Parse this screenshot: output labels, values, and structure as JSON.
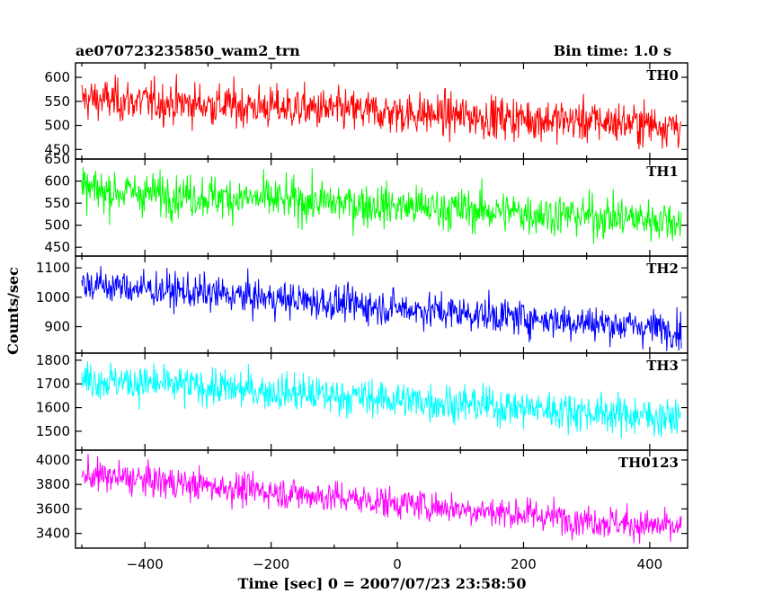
{
  "header": {
    "file_name": "ae070723235850_wam2_trn",
    "bin_time": "Bin time: 1.0 s"
  },
  "axes": {
    "ylabel": "Counts/sec",
    "xlabel": "Time [sec] 0 = 2007/07/23 23:58:50"
  },
  "chart_data": {
    "type": "line",
    "x_range": [
      -510,
      460
    ],
    "x_ticks": [
      -400,
      -200,
      0,
      200,
      400
    ],
    "bin_time_s": 1.0,
    "panels": [
      {
        "name": "TH0",
        "color": "#ff0000",
        "ylim": [
          430,
          630
        ],
        "y_ticks": [
          450,
          500,
          550,
          600
        ],
        "trend_start": 555,
        "trend_end": 500,
        "noise_sd": 22
      },
      {
        "name": "TH1",
        "color": "#00ff00",
        "ylim": [
          430,
          650
        ],
        "y_ticks": [
          450,
          500,
          550,
          600,
          650
        ],
        "trend_start": 580,
        "trend_end": 510,
        "noise_sd": 24
      },
      {
        "name": "TH2",
        "color": "#0000ff",
        "ylim": [
          810,
          1140
        ],
        "y_ticks": [
          900,
          1000,
          1100
        ],
        "trend_start": 1045,
        "trend_end": 890,
        "noise_sd": 30
      },
      {
        "name": "TH3",
        "color": "#00ffff",
        "ylim": [
          1420,
          1830
        ],
        "y_ticks": [
          1500,
          1600,
          1700,
          1800
        ],
        "trend_start": 1720,
        "trend_end": 1555,
        "noise_sd": 40
      },
      {
        "name": "TH0123",
        "color": "#ff00ff",
        "ylim": [
          3280,
          4080
        ],
        "y_ticks": [
          3400,
          3600,
          3800,
          4000
        ],
        "trend_start": 3880,
        "trend_end": 3440,
        "noise_sd": 65
      }
    ]
  }
}
